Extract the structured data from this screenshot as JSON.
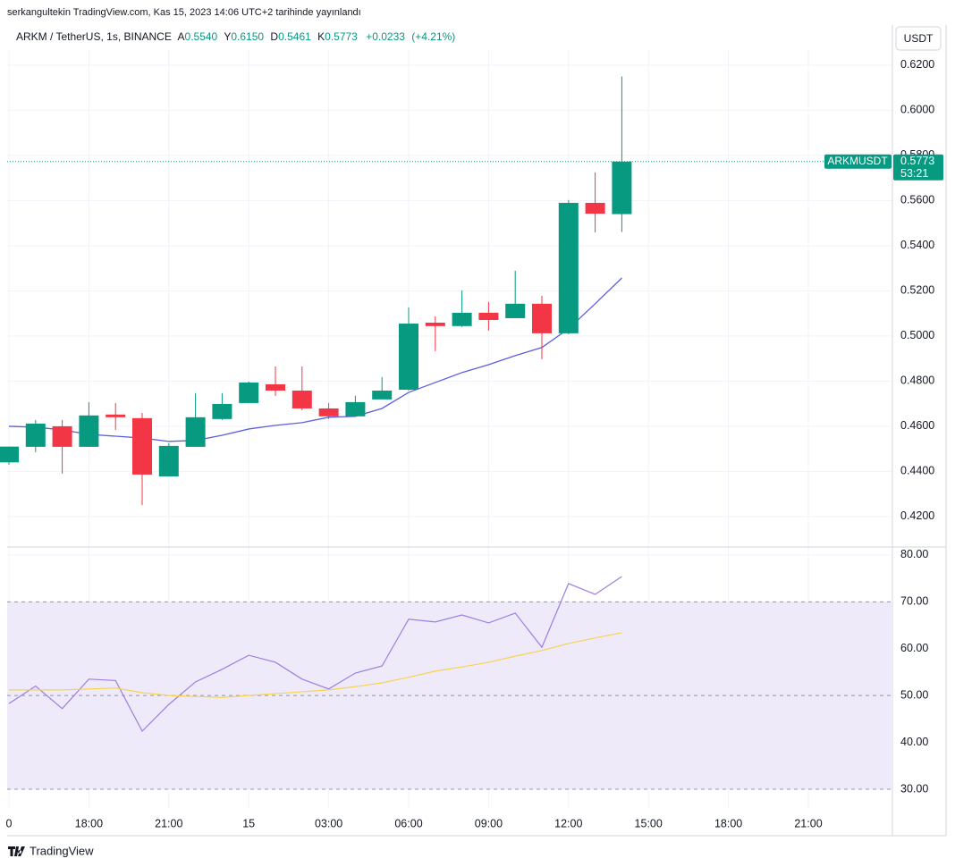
{
  "header": {
    "title": "serkangultekin TradingView.com, Kas 15, 2023 14:06 UTC+2 tarihinde yayınlandı"
  },
  "footer": {
    "brand": "TradingView"
  },
  "currency_button": "USDT",
  "chart_data": [
    {
      "type": "candlestick",
      "legend": {
        "symbol": "ARKM / TetherUS, 1s, BINANCE",
        "ohlc": [
          {
            "label": "A",
            "value": "0.5540"
          },
          {
            "label": "Y",
            "value": "0.6150"
          },
          {
            "label": "D",
            "value": "0.5461"
          },
          {
            "label": "K",
            "value": "0.5773"
          }
        ],
        "change": "+0.0233",
        "change_pct": "(+4.21%)"
      },
      "last_price_label": {
        "symbol": "ARKMUSDT",
        "price": "0.5773",
        "countdown": "53:21"
      },
      "categories": [
        "0",
        null,
        null,
        "18:00",
        null,
        null,
        "21:00",
        null,
        null,
        "15",
        null,
        null,
        "03:00",
        null,
        null,
        "06:00",
        null,
        null,
        "09:00",
        null,
        null,
        "12:00",
        null,
        null,
        "15:00",
        null,
        null,
        "18:00",
        null,
        null,
        "21:00"
      ],
      "open": [
        0.444,
        0.4509,
        0.46,
        0.4509,
        0.4652,
        0.4636,
        0.4378,
        0.4509,
        0.4632,
        0.4703,
        0.4786,
        0.4758,
        0.4679,
        0.4644,
        0.4719,
        0.4762,
        0.5059,
        0.5044,
        0.5103,
        0.5079,
        0.5143,
        0.5012,
        0.559,
        0.554,
        null,
        null,
        null,
        null,
        null,
        null,
        null
      ],
      "high": [
        0.451,
        0.4628,
        0.4628,
        0.4707,
        0.4703,
        0.4659,
        0.4525,
        0.4747,
        0.4747,
        0.4798,
        0.4865,
        0.4865,
        0.4703,
        0.4735,
        0.4818,
        0.5127,
        0.5087,
        0.5202,
        0.5151,
        0.5289,
        0.5178,
        0.5602,
        0.5725,
        0.615,
        null,
        null,
        null,
        null,
        null,
        null,
        null
      ],
      "low": [
        0.443,
        0.4485,
        0.439,
        0.4509,
        0.4584,
        0.4251,
        0.4378,
        0.4509,
        0.4628,
        0.4703,
        0.4735,
        0.4671,
        0.4632,
        0.4644,
        0.4719,
        0.4758,
        0.4933,
        0.504,
        0.5024,
        0.5079,
        0.4897,
        0.5008,
        0.5459,
        0.5461,
        null,
        null,
        null,
        null,
        null,
        null,
        null
      ],
      "close": [
        0.451,
        0.4612,
        0.4509,
        0.4648,
        0.464,
        0.4386,
        0.4513,
        0.464,
        0.4699,
        0.4794,
        0.4758,
        0.4679,
        0.4644,
        0.4707,
        0.4758,
        0.5055,
        0.5044,
        0.5103,
        0.5071,
        0.5143,
        0.5012,
        0.559,
        0.5542,
        0.5773,
        null,
        null,
        null,
        null,
        null,
        null,
        null
      ],
      "up_color": "#089981",
      "down_color": "#f23645",
      "moving_average": {
        "color": "#5b5fe0",
        "values": [
          0.46,
          0.4596,
          0.4584,
          0.4564,
          0.4556,
          0.4548,
          0.4533,
          0.4537,
          0.456,
          0.4588,
          0.4604,
          0.4616,
          0.464,
          0.4644,
          0.4679,
          0.475,
          0.4794,
          0.4838,
          0.4873,
          0.4913,
          0.4949,
          0.5032,
          0.5143,
          0.5257,
          null,
          null,
          null,
          null,
          null,
          null,
          null
        ]
      },
      "ylim": [
        0.4065,
        0.6271
      ],
      "yticks": [
        {
          "value": 0.42,
          "label": "0.4200"
        },
        {
          "value": 0.44,
          "label": "0.4400"
        },
        {
          "value": 0.46,
          "label": "0.4600"
        },
        {
          "value": 0.48,
          "label": "0.4800"
        },
        {
          "value": 0.5,
          "label": "0.5000"
        },
        {
          "value": 0.52,
          "label": "0.5200"
        },
        {
          "value": 0.54,
          "label": "0.5400"
        },
        {
          "value": 0.56,
          "label": "0.5600"
        },
        {
          "value": 0.58,
          "label": "0.5800"
        },
        {
          "value": 0.6,
          "label": "0.6000"
        },
        {
          "value": 0.62,
          "label": "0.6200"
        }
      ],
      "grid": true
    },
    {
      "type": "line",
      "series": [
        {
          "color": "#9c7ee0",
          "values": [
            48.3,
            52.0,
            47.2,
            53.5,
            53.2,
            42.4,
            48.1,
            52.9,
            55.6,
            58.6,
            57.1,
            53.5,
            51.4,
            54.8,
            56.3,
            66.3,
            65.7,
            67.2,
            65.5,
            67.6,
            60.3,
            73.9,
            71.6,
            75.4,
            null,
            null,
            null,
            null,
            null,
            null,
            null
          ]
        },
        {
          "color": "#f7d34f",
          "values": [
            51.2,
            51.2,
            51.2,
            51.4,
            51.6,
            50.6,
            50.0,
            49.8,
            49.6,
            50.0,
            50.4,
            50.8,
            51.2,
            51.9,
            52.7,
            53.9,
            55.2,
            56.1,
            57.1,
            58.4,
            59.6,
            61.1,
            62.3,
            63.4,
            null,
            null,
            null,
            null,
            null,
            null,
            null
          ]
        }
      ],
      "band": [
        30,
        70
      ],
      "band_color": "#efeaf9",
      "reference_lines": [
        30,
        50,
        70
      ],
      "ylim": [
        25.8,
        81.7
      ],
      "yticks": [
        {
          "value": 30,
          "label": "30.00"
        },
        {
          "value": 40,
          "label": "40.00"
        },
        {
          "value": 50,
          "label": "50.00"
        },
        {
          "value": 60,
          "label": "60.00"
        },
        {
          "value": 70,
          "label": "70.00"
        },
        {
          "value": 80,
          "label": "80.00"
        }
      ],
      "grid": true
    }
  ]
}
